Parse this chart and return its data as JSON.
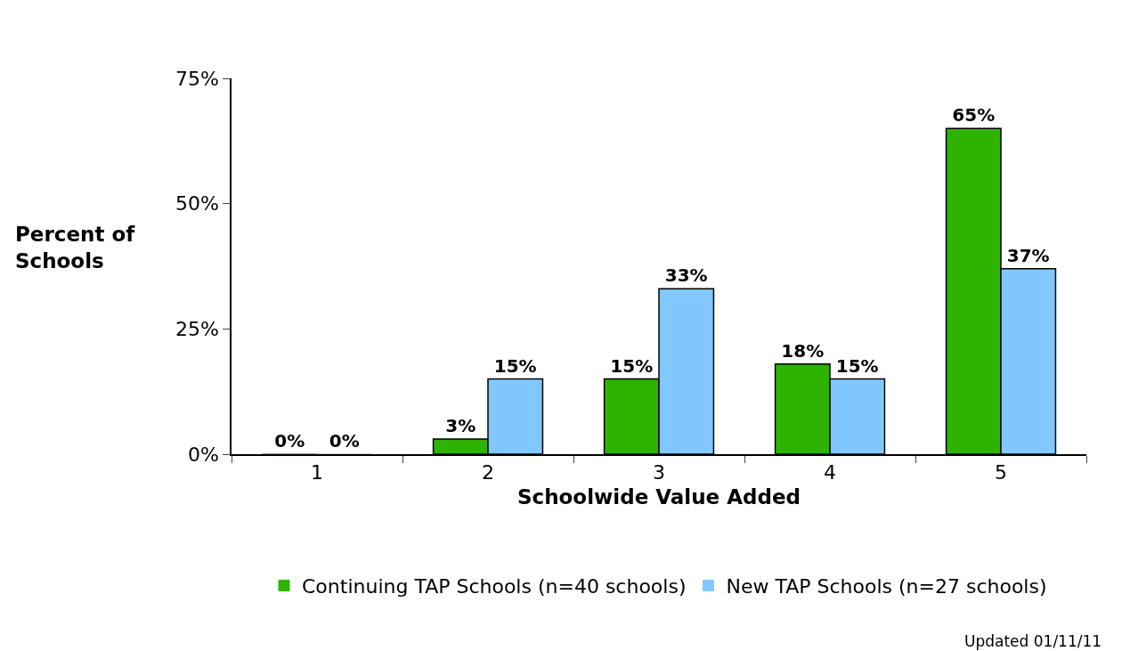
{
  "chart_data": {
    "type": "bar",
    "xlabel": "Schoolwide Value Added",
    "ylabel": "Percent of Schools",
    "categories": [
      "1",
      "2",
      "3",
      "4",
      "5"
    ],
    "series": [
      {
        "name": "Continuing TAP Schools (n=40 schools)",
        "color": "#2db300",
        "values": [
          0,
          3,
          15,
          18,
          65
        ],
        "value_labels": [
          "0%",
          "3%",
          "15%",
          "18%",
          "65%"
        ]
      },
      {
        "name": "New TAP Schools (n=27 schools)",
        "color": "#80c8ff",
        "values": [
          0,
          15,
          33,
          15,
          37
        ],
        "value_labels": [
          "0%",
          "15%",
          "33%",
          "15%",
          "37%"
        ]
      }
    ],
    "ylim": [
      0,
      75
    ],
    "yticks": [
      {
        "value": 0,
        "label": "0%"
      },
      {
        "value": 25,
        "label": "25%"
      },
      {
        "value": 50,
        "label": "50%"
      },
      {
        "value": 75,
        "label": "75%"
      }
    ],
    "legend": "bottom",
    "annotations": [
      "Updated 01/11/11"
    ]
  }
}
